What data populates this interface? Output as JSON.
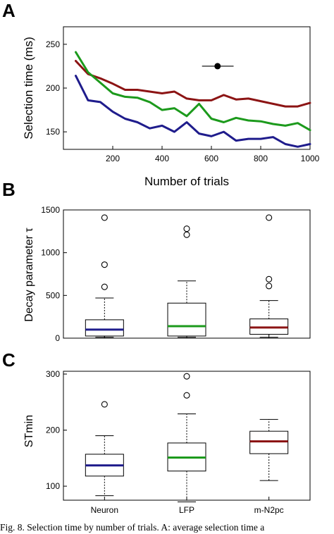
{
  "colors": {
    "neuron": "#1f1c8c",
    "lfp": "#1c9a1c",
    "m_n2pc": "#8c1414"
  },
  "caption": "Fig. 8. Selection time by number of trials. A: average selection time a",
  "chart_data": [
    {
      "panel": "A",
      "type": "line",
      "xlabel": "Number of trials",
      "ylabel": "Selection time (ms)",
      "xlim": [
        0,
        1000
      ],
      "ylim": [
        130,
        270
      ],
      "xticks": [
        200,
        400,
        600,
        800,
        1000
      ],
      "yticks": [
        150,
        200,
        250
      ],
      "x": [
        50,
        100,
        150,
        200,
        250,
        300,
        350,
        400,
        450,
        500,
        550,
        600,
        650,
        700,
        750,
        800,
        850,
        900,
        950,
        1000
      ],
      "series": [
        {
          "key": "m_n2pc",
          "values": [
            231,
            216,
            211,
            205,
            198,
            198,
            196,
            194,
            196,
            188,
            186,
            186,
            192,
            187,
            188,
            185,
            182,
            179,
            179,
            183
          ]
        },
        {
          "key": "lfp",
          "values": [
            241,
            218,
            206,
            194,
            190,
            189,
            184,
            175,
            177,
            168,
            182,
            165,
            161,
            166,
            163,
            162,
            159,
            157,
            160,
            152
          ]
        },
        {
          "key": "neuron",
          "values": [
            214,
            186,
            184,
            173,
            165,
            161,
            154,
            157,
            150,
            161,
            148,
            145,
            150,
            140,
            142,
            142,
            144,
            136,
            133,
            136
          ]
        }
      ],
      "errorbar_point": {
        "x": 625,
        "y": 225,
        "xerr": [
          562,
          690
        ]
      }
    },
    {
      "panel": "B",
      "type": "box",
      "ylabel": "Decay parameter τ",
      "ylim": [
        0,
        1500
      ],
      "yticks": [
        0,
        500,
        1000,
        1500
      ],
      "categories": [
        "Neuron",
        "LFP",
        "m-N2pc"
      ],
      "boxes": [
        {
          "key": "neuron",
          "whisker_low": 10,
          "q1": 25,
          "median": 100,
          "q3": 215,
          "whisker_high": 470,
          "outliers": [
            600,
            860,
            1410
          ]
        },
        {
          "key": "lfp",
          "whisker_low": 10,
          "q1": 25,
          "median": 140,
          "q3": 410,
          "whisker_high": 670,
          "outliers": [
            1210,
            1280
          ]
        },
        {
          "key": "m_n2pc",
          "whisker_low": 10,
          "q1": 45,
          "median": 125,
          "q3": 225,
          "whisker_high": 440,
          "outliers": [
            610,
            690,
            1410
          ]
        }
      ]
    },
    {
      "panel": "C",
      "type": "box",
      "ylabel": "STmin",
      "ylim": [
        75,
        305
      ],
      "yticks": [
        100,
        200,
        300
      ],
      "categories": [
        "Neuron",
        "LFP",
        "m-N2pc"
      ],
      "boxes": [
        {
          "key": "neuron",
          "whisker_low": 83,
          "q1": 118,
          "median": 137,
          "q3": 157,
          "whisker_high": 190,
          "outliers": [
            246
          ]
        },
        {
          "key": "lfp",
          "whisker_low": 72,
          "q1": 127,
          "median": 151,
          "q3": 177,
          "whisker_high": 229,
          "outliers": [
            262,
            296
          ]
        },
        {
          "key": "m_n2pc",
          "whisker_low": 110,
          "q1": 158,
          "median": 180,
          "q3": 198,
          "whisker_high": 219,
          "outliers": []
        }
      ]
    }
  ]
}
